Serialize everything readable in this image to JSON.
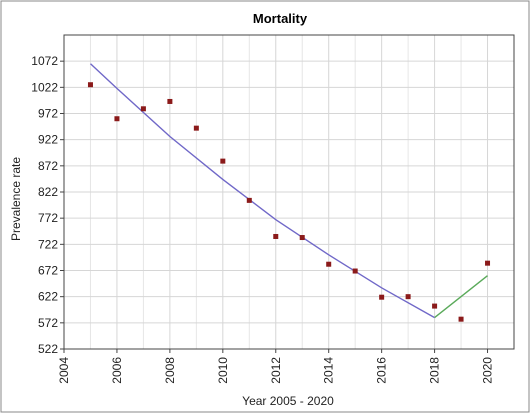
{
  "chart_data": {
    "type": "scatter",
    "title": "Mortality",
    "xlabel": "Year 2005 - 2020",
    "ylabel": "Prevalence rate",
    "xlim": [
      2004,
      2021
    ],
    "ylim": [
      522,
      1122
    ],
    "x_ticks": [
      "2004",
      "2006",
      "2008",
      "2010",
      "2012",
      "2014",
      "2016",
      "2018",
      "2020"
    ],
    "y_ticks": [
      "522",
      "572",
      "622",
      "672",
      "722",
      "772",
      "822",
      "872",
      "922",
      "972",
      "1022",
      "1072"
    ],
    "grid": true,
    "legend": "none",
    "series": [
      {
        "kind": "points",
        "color": "#8b1a1a",
        "x": [
          2005,
          2006,
          2007,
          2008,
          2009,
          2010,
          2011,
          2012,
          2013,
          2014,
          2015,
          2016,
          2017,
          2018,
          2019,
          2020
        ],
        "y": [
          1027,
          962,
          981,
          995,
          944,
          881,
          806,
          737,
          735,
          684,
          671,
          621,
          622,
          604,
          579,
          686
        ]
      },
      {
        "kind": "line",
        "color": "#7068c8",
        "x": [
          2005,
          2006,
          2008,
          2010,
          2012,
          2014,
          2016,
          2018
        ],
        "y": [
          1067,
          1020,
          928,
          846,
          769,
          702,
          639,
          582
        ]
      },
      {
        "kind": "line",
        "color": "#5aaa5a",
        "x": [
          2018,
          2020
        ],
        "y": [
          582,
          662
        ]
      }
    ]
  }
}
